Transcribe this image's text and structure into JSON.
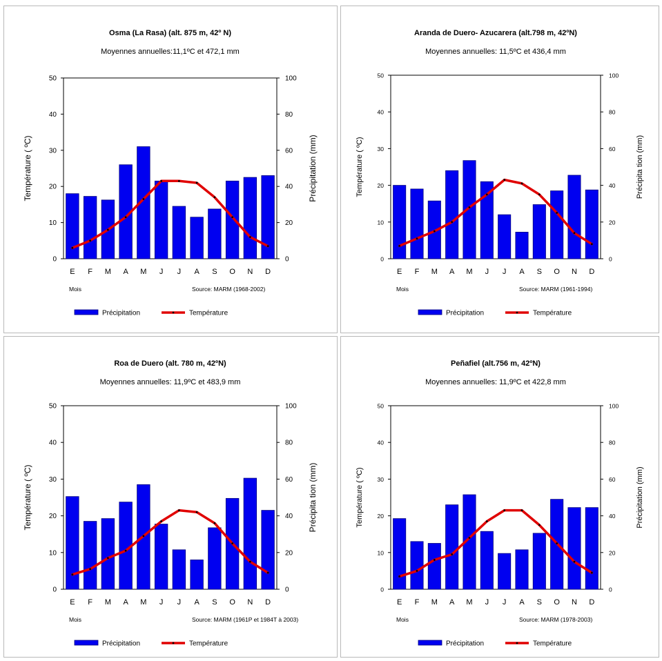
{
  "colors": {
    "bar": "#0000f0",
    "bar_stroke": "#000080",
    "line": "#e00000",
    "marker": "#000000",
    "plot_border": "#000000"
  },
  "chart_data": [
    {
      "type": "bar",
      "title": "Osma (La Rasa) (alt.  875 m, 42º N)",
      "subtitle": "Moyennes annuelles:11,1ºC et 472,1 mm",
      "ylabel_left": "Température ( ºC)",
      "ylabel_right": "Précipitation (mm)",
      "xlabel": "Mois",
      "source": "Source: MARM (1968-2002)",
      "categories": [
        "E",
        "F",
        "M",
        "A",
        "M",
        "J",
        "J",
        "A",
        "S",
        "O",
        "N",
        "D"
      ],
      "ylim_left": [
        0,
        50
      ],
      "ylim_right": [
        0,
        100
      ],
      "yticks_left": [
        "0",
        "10",
        "20",
        "30",
        "40",
        "50"
      ],
      "yticks_right": [
        "0",
        "20",
        "40",
        "60",
        "80",
        "100"
      ],
      "grid": false,
      "legend_position": "bottom",
      "series": [
        {
          "name": "Précipitation",
          "kind": "bar",
          "axis": "right",
          "values": [
            36,
            34.5,
            32.5,
            52,
            62,
            43,
            29,
            23,
            27.5,
            43,
            45,
            46
          ]
        },
        {
          "name": "Température",
          "kind": "line",
          "axis": "left",
          "values": [
            3,
            5,
            8,
            11.5,
            16.5,
            21.5,
            21.5,
            21,
            17,
            11.5,
            6,
            3.5
          ]
        }
      ]
    },
    {
      "type": "bar",
      "title": "Aranda de Duero- Azucarera (alt.798 m, 42ºN)",
      "subtitle": "Moyennes annuelles: 11,5ºC et 436,4 mm",
      "ylabel_left": "Température ( ºC)",
      "ylabel_right": "Précipita tion (mm)",
      "xlabel": "Mois",
      "source": "Source: MARM (1961-1994)",
      "categories": [
        "E",
        "F",
        "M",
        "A",
        "M",
        "J",
        "J",
        "A",
        "S",
        "O",
        "N",
        "D"
      ],
      "ylim_left": [
        0,
        50
      ],
      "ylim_right": [
        0,
        100
      ],
      "yticks_left": [
        "0",
        "10",
        "20",
        "30",
        "40",
        "50"
      ],
      "yticks_right": [
        "0",
        "20",
        "40",
        "60",
        "80",
        "100"
      ],
      "grid": false,
      "legend_position": "bottom",
      "series": [
        {
          "name": "Précipitation",
          "kind": "bar",
          "axis": "right",
          "values": [
            40,
            38,
            31.5,
            48,
            53.5,
            42,
            24,
            14.5,
            29.5,
            37,
            45.5,
            37.5
          ]
        },
        {
          "name": "Température",
          "kind": "line",
          "axis": "left",
          "values": [
            3.5,
            5.5,
            7.5,
            10,
            14,
            17.5,
            21.5,
            20.5,
            17.5,
            12.5,
            7,
            4
          ]
        }
      ]
    },
    {
      "type": "bar",
      "title": "Roa de Duero  (alt. 780 m, 42ºN)",
      "subtitle": "Moyennes annuelles: 11,9ºC et 483,9 mm",
      "ylabel_left": "Température ( ºC)",
      "ylabel_right": "Précipita tion (mm)",
      "xlabel": "Mois",
      "source": "Source: MARM (1961P et 1984T à 2003)",
      "categories": [
        "E",
        "F",
        "M",
        "A",
        "M",
        "J",
        "J",
        "A",
        "S",
        "O",
        "N",
        "D"
      ],
      "ylim_left": [
        0,
        50
      ],
      "ylim_right": [
        0,
        100
      ],
      "yticks_left": [
        "0",
        "10",
        "20",
        "30",
        "40",
        "50"
      ],
      "yticks_right": [
        "0",
        "20",
        "40",
        "60",
        "80",
        "100"
      ],
      "grid": false,
      "legend_position": "bottom",
      "series": [
        {
          "name": "Précipitation",
          "kind": "bar",
          "axis": "right",
          "values": [
            50.5,
            37,
            38.5,
            47.5,
            57,
            35.5,
            21.5,
            16,
            33.5,
            49.5,
            60.5,
            43
          ]
        },
        {
          "name": "Température",
          "kind": "line",
          "axis": "left",
          "values": [
            4,
            5.5,
            8.5,
            10.5,
            14.5,
            18.5,
            21.5,
            21,
            18,
            12.5,
            7.5,
            4.5
          ]
        }
      ]
    },
    {
      "type": "bar",
      "title": "Peñafiel  (alt.756 m, 42ºN)",
      "subtitle": "Moyennes annuelles: 11,9ºC et 422,8 mm",
      "ylabel_left": "Température ( ºC)",
      "ylabel_right": "Précipitation (mm)",
      "xlabel": "Mois",
      "source": "Source: MARM (1978-2003)",
      "categories": [
        "E",
        "F",
        "M",
        "A",
        "M",
        "J",
        "J",
        "A",
        "S",
        "O",
        "N",
        "D"
      ],
      "ylim_left": [
        0,
        50
      ],
      "ylim_right": [
        0,
        100
      ],
      "yticks_left": [
        "0",
        "10",
        "20",
        "30",
        "40",
        "50"
      ],
      "yticks_right": [
        "0",
        "20",
        "40",
        "60",
        "80",
        "100"
      ],
      "grid": false,
      "legend_position": "bottom",
      "series": [
        {
          "name": "Précipitation",
          "kind": "bar",
          "axis": "right",
          "values": [
            38.5,
            26,
            25,
            46,
            51.5,
            31.5,
            19.5,
            21.5,
            30.5,
            49,
            44.5,
            44.5
          ]
        },
        {
          "name": "Température",
          "kind": "line",
          "axis": "left",
          "values": [
            3.5,
            5,
            8,
            9.5,
            14,
            18.5,
            21.5,
            21.5,
            17.5,
            12.5,
            7.5,
            4.5
          ]
        }
      ]
    }
  ]
}
